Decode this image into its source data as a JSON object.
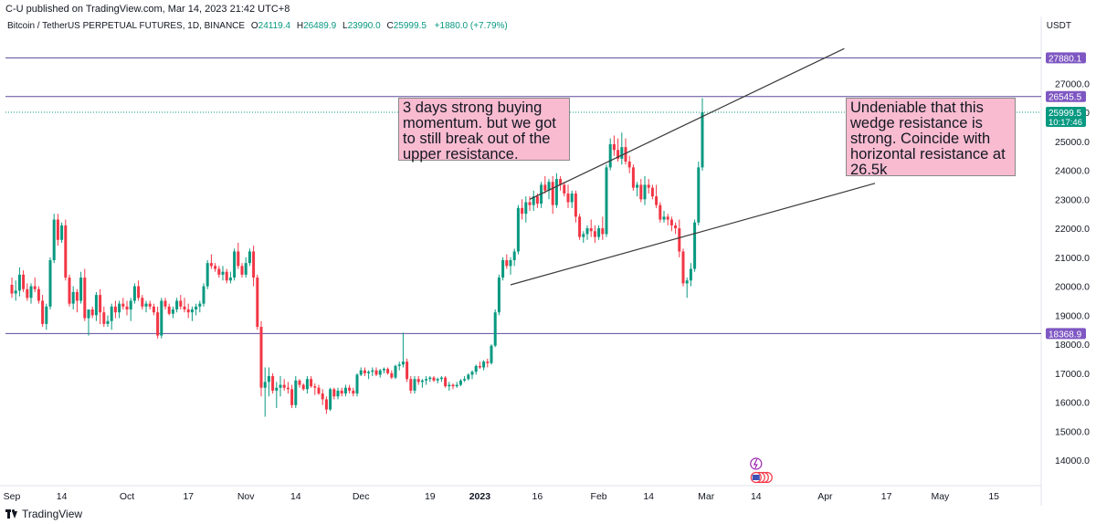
{
  "header": {
    "publisher": "C-U published on TradingView.com, Mar 14, 2023 21:42 UTC+8"
  },
  "symbol": {
    "name": "Bitcoin / TetherUS PERPETUAL FUTURES, 1D, BINANCE",
    "open_label": "O",
    "open": "24119.4",
    "high_label": "H",
    "high": "26489.9",
    "low_label": "L",
    "low": "23990.0",
    "close_label": "C",
    "close": "25999.5",
    "change": "+1880.0 (+7.79%)"
  },
  "currency": "USDT",
  "annotations": {
    "left": "3 days strong buying momentum. but we got to still break out of the upper resistance.",
    "right": "Undeniable that this wedge resistance is strong. Coincide with horizontal resistance at 26.5k"
  },
  "footer": {
    "brand": "TradingView"
  },
  "colors": {
    "up": "#089981",
    "down": "#f23645",
    "purple": "#7e57c2",
    "hline": "#5b4a9a",
    "trend": "#3a3a3a",
    "annot_bg": "#f8bbd0",
    "axis_text": "#131722"
  },
  "chart_data": {
    "type": "candlestick",
    "title": "Bitcoin / TetherUS PERPETUAL FUTURES, 1D, BINANCE",
    "ylabel": "USDT",
    "ylim": [
      13500,
      28300
    ],
    "y_ticks": [
      14000,
      15000,
      16000,
      17000,
      18000,
      19000,
      20000,
      21000,
      22000,
      23000,
      24000,
      25000,
      26000,
      27000
    ],
    "x_ticks": [
      {
        "label": "Sep",
        "day": 0,
        "bold": false
      },
      {
        "label": "14",
        "day": 13,
        "bold": false
      },
      {
        "label": "Oct",
        "day": 30,
        "bold": false
      },
      {
        "label": "17",
        "day": 46,
        "bold": false
      },
      {
        "label": "Nov",
        "day": 61,
        "bold": false
      },
      {
        "label": "14",
        "day": 74,
        "bold": false
      },
      {
        "label": "Dec",
        "day": 91,
        "bold": false
      },
      {
        "label": "19",
        "day": 109,
        "bold": false
      },
      {
        "label": "2023",
        "day": 122,
        "bold": true
      },
      {
        "label": "16",
        "day": 137,
        "bold": false
      },
      {
        "label": "Feb",
        "day": 153,
        "bold": false
      },
      {
        "label": "14",
        "day": 166,
        "bold": false
      },
      {
        "label": "Mar",
        "day": 181,
        "bold": false
      },
      {
        "label": "14",
        "day": 194,
        "bold": false
      },
      {
        "label": "Apr",
        "day": 212,
        "bold": false
      },
      {
        "label": "17",
        "day": 228,
        "bold": false
      },
      {
        "label": "May",
        "day": 242,
        "bold": false
      },
      {
        "label": "15",
        "day": 256,
        "bold": false
      }
    ],
    "price_labels": [
      {
        "price": 27880.1,
        "text": "27880.1",
        "color": "#7e57c2"
      },
      {
        "price": 26545.5,
        "text": "26545.5",
        "color": "#7e57c2"
      },
      {
        "price": 25999.5,
        "text": "25999.5",
        "sub": "10:17:46",
        "color": "#089981"
      },
      {
        "price": 18368.9,
        "text": "18368.9",
        "color": "#7e57c2"
      }
    ],
    "horizontal_lines": [
      27880.1,
      26545.5,
      18368.9
    ],
    "current_price": 25999.5,
    "trendlines": [
      {
        "from": [
          135,
          23000
        ],
        "to": [
          217,
          28200
        ]
      },
      {
        "from": [
          130,
          20050
        ],
        "to": [
          225,
          23550
        ]
      }
    ],
    "candles_start_day": 0,
    "candles": [
      [
        20050,
        20300,
        19600,
        19750
      ],
      [
        19750,
        20200,
        19500,
        19850
      ],
      [
        19850,
        20650,
        19650,
        20400
      ],
      [
        20400,
        20550,
        19800,
        19900
      ],
      [
        19900,
        20100,
        19500,
        19600
      ],
      [
        19600,
        20100,
        19400,
        20000
      ],
      [
        20000,
        20300,
        19800,
        19900
      ],
      [
        19900,
        20000,
        19400,
        19500
      ],
      [
        19500,
        19700,
        18600,
        18700
      ],
      [
        18700,
        19400,
        18500,
        19300
      ],
      [
        19300,
        21000,
        19200,
        20900
      ],
      [
        20900,
        22500,
        20800,
        22300
      ],
      [
        22300,
        22500,
        21400,
        21600
      ],
      [
        21600,
        22200,
        21500,
        22100
      ],
      [
        22100,
        22300,
        20200,
        20300
      ],
      [
        20300,
        20400,
        19300,
        19400
      ],
      [
        19400,
        20000,
        19200,
        19800
      ],
      [
        19800,
        19900,
        19100,
        19500
      ],
      [
        19500,
        20500,
        19400,
        20300
      ],
      [
        20300,
        20600,
        18800,
        18900
      ],
      [
        18900,
        19200,
        18300,
        19200
      ],
      [
        19200,
        19300,
        18900,
        19000
      ],
      [
        19000,
        19800,
        18800,
        19700
      ],
      [
        19700,
        19900,
        18700,
        19100
      ],
      [
        19100,
        19300,
        18600,
        18700
      ],
      [
        18700,
        19000,
        18600,
        18800
      ],
      [
        18800,
        19400,
        18500,
        19300
      ],
      [
        19300,
        19500,
        18900,
        19100
      ],
      [
        19100,
        19500,
        18900,
        19400
      ],
      [
        19400,
        19600,
        19200,
        19300
      ],
      [
        19300,
        19500,
        19000,
        19200
      ],
      [
        19200,
        19600,
        18800,
        19500
      ],
      [
        19500,
        20100,
        19400,
        20000
      ],
      [
        20000,
        20200,
        19500,
        19600
      ],
      [
        19600,
        19700,
        19200,
        19300
      ],
      [
        19300,
        19500,
        19100,
        19400
      ],
      [
        19400,
        19500,
        19200,
        19300
      ],
      [
        19300,
        19400,
        19000,
        19100
      ],
      [
        19100,
        19300,
        18200,
        18300
      ],
      [
        18300,
        19600,
        18200,
        19500
      ],
      [
        19500,
        19600,
        19200,
        19300
      ],
      [
        19300,
        19400,
        19000,
        19050
      ],
      [
        19050,
        19300,
        18900,
        19200
      ],
      [
        19200,
        19600,
        19100,
        19500
      ],
      [
        19500,
        19700,
        19200,
        19300
      ],
      [
        19300,
        19600,
        19100,
        19200
      ],
      [
        19200,
        19400,
        18900,
        19100
      ],
      [
        19100,
        19300,
        18800,
        19200
      ],
      [
        19200,
        19400,
        19000,
        19300
      ],
      [
        19300,
        19500,
        19100,
        19400
      ],
      [
        19400,
        20100,
        19300,
        20000
      ],
      [
        20000,
        20900,
        19900,
        20800
      ],
      [
        20800,
        21100,
        20600,
        20700
      ],
      [
        20700,
        20800,
        20500,
        20600
      ],
      [
        20600,
        20700,
        20300,
        20400
      ],
      [
        20400,
        20700,
        20200,
        20500
      ],
      [
        20500,
        20600,
        20100,
        20200
      ],
      [
        20200,
        20500,
        20100,
        20300
      ],
      [
        20300,
        21300,
        20200,
        21200
      ],
      [
        21200,
        21500,
        20600,
        20700
      ],
      [
        20700,
        20800,
        20300,
        20400
      ],
      [
        20400,
        21000,
        20300,
        20800
      ],
      [
        20800,
        21300,
        20700,
        21200
      ],
      [
        21200,
        21400,
        20000,
        20300
      ],
      [
        20300,
        20400,
        18500,
        18600
      ],
      [
        18600,
        18800,
        16200,
        16500
      ],
      [
        16500,
        17200,
        15500,
        16700
      ],
      [
        16700,
        17200,
        16200,
        16900
      ],
      [
        16900,
        17000,
        16300,
        16400
      ],
      [
        16400,
        16700,
        15800,
        16500
      ],
      [
        16500,
        16900,
        16200,
        16600
      ],
      [
        16600,
        16800,
        16400,
        16500
      ],
      [
        16500,
        16700,
        16300,
        16450
      ],
      [
        16450,
        16600,
        15800,
        15900
      ],
      [
        15900,
        16900,
        15800,
        16750
      ],
      [
        16750,
        16800,
        16500,
        16600
      ],
      [
        16600,
        16650,
        16400,
        16450
      ],
      [
        16450,
        16900,
        16300,
        16800
      ],
      [
        16800,
        16900,
        16500,
        16550
      ],
      [
        16550,
        16650,
        16250,
        16500
      ],
      [
        16500,
        16600,
        16250,
        16300
      ],
      [
        16300,
        16450,
        15900,
        16100
      ],
      [
        16100,
        16200,
        15600,
        15750
      ],
      [
        15750,
        16500,
        15700,
        16450
      ],
      [
        16450,
        16500,
        16100,
        16200
      ],
      [
        16200,
        16500,
        16100,
        16400
      ],
      [
        16400,
        16500,
        16200,
        16300
      ],
      [
        16300,
        16600,
        16200,
        16500
      ],
      [
        16500,
        16600,
        16300,
        16400
      ],
      [
        16400,
        16500,
        16200,
        16300
      ],
      [
        16300,
        17000,
        16200,
        16950
      ],
      [
        16950,
        17200,
        16900,
        17100
      ],
      [
        17100,
        17200,
        16900,
        17000
      ],
      [
        17000,
        17100,
        16800,
        17050
      ],
      [
        17050,
        17200,
        16900,
        17100
      ],
      [
        17100,
        17200,
        16900,
        16950
      ],
      [
        16950,
        17150,
        16850,
        17100
      ],
      [
        17100,
        17200,
        17000,
        17150
      ],
      [
        17150,
        17200,
        16950,
        17000
      ],
      [
        17000,
        17100,
        16800,
        16850
      ],
      [
        16850,
        17300,
        16800,
        17250
      ],
      [
        17250,
        17400,
        17100,
        17300
      ],
      [
        17300,
        18400,
        17200,
        17400
      ],
      [
        17400,
        17500,
        16700,
        16800
      ],
      [
        16800,
        16900,
        16300,
        16400
      ],
      [
        16400,
        16900,
        16300,
        16800
      ],
      [
        16800,
        16900,
        16600,
        16700
      ],
      [
        16700,
        16800,
        16500,
        16750
      ],
      [
        16750,
        16900,
        16600,
        16800
      ],
      [
        16800,
        16900,
        16700,
        16850
      ],
      [
        16850,
        16900,
        16700,
        16750
      ],
      [
        16750,
        16850,
        16650,
        16800
      ],
      [
        16800,
        16900,
        16700,
        16850
      ],
      [
        16850,
        16900,
        16500,
        16550
      ],
      [
        16550,
        16700,
        16400,
        16600
      ],
      [
        16600,
        16650,
        16450,
        16550
      ],
      [
        16550,
        16700,
        16500,
        16600
      ],
      [
        16600,
        16800,
        16550,
        16750
      ],
      [
        16750,
        16900,
        16700,
        16800
      ],
      [
        16800,
        17000,
        16750,
        16950
      ],
      [
        16950,
        17100,
        16800,
        17050
      ],
      [
        17050,
        17300,
        16950,
        17250
      ],
      [
        17250,
        17400,
        17150,
        17200
      ],
      [
        17200,
        17450,
        17100,
        17400
      ],
      [
        17400,
        17500,
        17200,
        17350
      ],
      [
        17350,
        18000,
        17300,
        17950
      ],
      [
        17950,
        19200,
        17900,
        19100
      ],
      [
        19100,
        20400,
        19000,
        20300
      ],
      [
        20300,
        21000,
        20200,
        20900
      ],
      [
        20900,
        21100,
        20600,
        20700
      ],
      [
        20700,
        21000,
        20400,
        20900
      ],
      [
        20900,
        21300,
        20700,
        21200
      ],
      [
        21200,
        22800,
        21100,
        22700
      ],
      [
        22700,
        23000,
        22300,
        22500
      ],
      [
        22500,
        23100,
        22200,
        22900
      ],
      [
        22900,
        23100,
        22600,
        22800
      ],
      [
        22800,
        23300,
        22600,
        23100
      ],
      [
        23100,
        23200,
        22700,
        22850
      ],
      [
        22850,
        23600,
        22700,
        23500
      ],
      [
        23500,
        23800,
        23200,
        23300
      ],
      [
        23300,
        23700,
        23000,
        23600
      ],
      [
        23600,
        23800,
        22500,
        22800
      ],
      [
        22800,
        23900,
        22700,
        23700
      ],
      [
        23700,
        23800,
        23300,
        23500
      ],
      [
        23500,
        23600,
        23100,
        23200
      ],
      [
        23200,
        23500,
        22700,
        22900
      ],
      [
        22900,
        23300,
        22700,
        23200
      ],
      [
        23200,
        23300,
        22200,
        22400
      ],
      [
        22400,
        22500,
        21600,
        21700
      ],
      [
        21700,
        21900,
        21500,
        21800
      ],
      [
        21800,
        22100,
        21600,
        22000
      ],
      [
        22000,
        22300,
        21700,
        21900
      ],
      [
        21900,
        22100,
        21500,
        21700
      ],
      [
        21700,
        22100,
        21600,
        22000
      ],
      [
        22000,
        22400,
        21600,
        21800
      ],
      [
        21800,
        24200,
        21700,
        24100
      ],
      [
        24100,
        25100,
        24000,
        24900
      ],
      [
        24900,
        25200,
        24500,
        24700
      ],
      [
        24700,
        25100,
        24300,
        24400
      ],
      [
        24400,
        25300,
        24200,
        24800
      ],
      [
        24800,
        25100,
        24200,
        24300
      ],
      [
        24300,
        24500,
        23900,
        24100
      ],
      [
        24100,
        24200,
        23300,
        23400
      ],
      [
        23400,
        23600,
        23100,
        23500
      ],
      [
        23500,
        23700,
        22900,
        23000
      ],
      [
        23000,
        23800,
        22800,
        23500
      ],
      [
        23500,
        23700,
        23200,
        23400
      ],
      [
        23400,
        23500,
        23000,
        23100
      ],
      [
        23100,
        23500,
        22700,
        22800
      ],
      [
        22800,
        22900,
        22200,
        22300
      ],
      [
        22300,
        22600,
        22200,
        22400
      ],
      [
        22400,
        22500,
        22100,
        22300
      ],
      [
        22300,
        22400,
        21900,
        22100
      ],
      [
        22100,
        22200,
        21800,
        22000
      ],
      [
        22000,
        22300,
        21000,
        21200
      ],
      [
        21200,
        21300,
        20000,
        20100
      ],
      [
        20100,
        20300,
        19600,
        20200
      ],
      [
        20200,
        20800,
        20000,
        20600
      ],
      [
        20600,
        22300,
        20500,
        22200
      ],
      [
        22200,
        24300,
        22100,
        24100
      ],
      [
        24100,
        26490,
        23990,
        26000
      ]
    ]
  }
}
